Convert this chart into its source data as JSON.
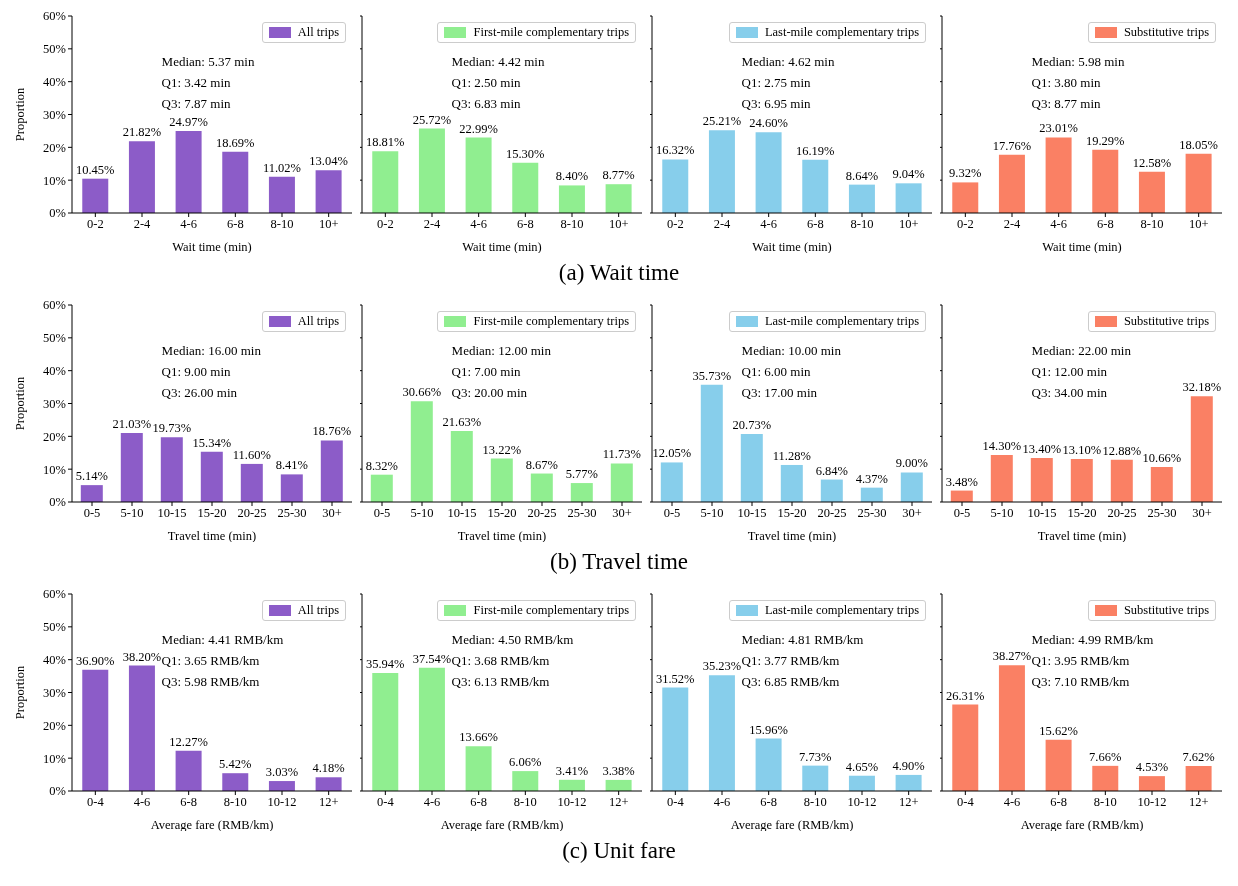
{
  "chart_data": [
    {
      "type": "bar",
      "categories": [
        "0-2",
        "2-4",
        "4-6",
        "6-8",
        "8-10",
        "10+"
      ],
      "xlabel": "Wait time (min)",
      "ylabel": "Proportion",
      "ylim": [
        0,
        60
      ],
      "yticks": [
        {
          "value": 0,
          "label": "0%"
        },
        {
          "value": 10,
          "label": "10%"
        },
        {
          "value": 20,
          "label": "20%"
        },
        {
          "value": 30,
          "label": "30%"
        },
        {
          "value": 40,
          "label": "40%"
        },
        {
          "value": 50,
          "label": "50%"
        },
        {
          "value": 60,
          "label": "60%"
        }
      ],
      "legend": "top right",
      "annotations": [
        "Median: 5.37 min",
        "Q1: 3.42 min",
        "Q3: 7.87 min"
      ],
      "series": [
        {
          "name": "All trips",
          "color": "#8c5cc8",
          "values": [
            10.45,
            21.82,
            24.97,
            18.69,
            11.02,
            13.04
          ],
          "value_labels": [
            "10.45%",
            "21.82%",
            "24.97%",
            "18.69%",
            "11.02%",
            "13.04%"
          ]
        }
      ]
    },
    {
      "type": "bar",
      "title": "(a) Wait time",
      "categories": [
        "0-2",
        "2-4",
        "4-6",
        "6-8",
        "8-10",
        "10+"
      ],
      "xlabel": "Wait time (min)",
      "ylim": [
        0,
        60
      ],
      "yticks": [
        0,
        10,
        20,
        30,
        40,
        50,
        60
      ],
      "tick_labels": "x",
      "legend": "top right",
      "annotations": [
        "Median: 4.42 min",
        "Q1: 2.50 min",
        "Q3: 6.83 min"
      ],
      "series": [
        {
          "name": "First-mile complementary trips",
          "color": "#90ee90",
          "values": [
            18.81,
            25.72,
            22.99,
            15.3,
            8.4,
            8.77
          ],
          "value_labels": [
            "18.81%",
            "25.72%",
            "22.99%",
            "15.30%",
            "8.40%",
            "8.77%"
          ]
        }
      ]
    },
    {
      "type": "bar",
      "categories": [
        "0-2",
        "2-4",
        "4-6",
        "6-8",
        "8-10",
        "10+"
      ],
      "xlabel": "Wait time (min)",
      "ylim": [
        0,
        60
      ],
      "yticks": [
        0,
        10,
        20,
        30,
        40,
        50,
        60
      ],
      "tick_labels": "x",
      "legend": "top right",
      "annotations": [
        "Median: 4.62 min",
        "Q1: 2.75 min",
        "Q3: 6.95 min"
      ],
      "series": [
        {
          "name": "Last-mile complementary trips",
          "color": "#87ceeb",
          "values": [
            16.32,
            25.21,
            24.6,
            16.19,
            8.64,
            9.04
          ],
          "value_labels": [
            "16.32%",
            "25.21%",
            "24.60%",
            "16.19%",
            "8.64%",
            "9.04%"
          ]
        }
      ]
    },
    {
      "type": "bar",
      "categories": [
        "0-2",
        "2-4",
        "4-6",
        "6-8",
        "8-10",
        "10+"
      ],
      "xlabel": "Wait time (min)",
      "ylim": [
        0,
        60
      ],
      "yticks": [
        0,
        10,
        20,
        30,
        40,
        50,
        60
      ],
      "tick_labels": "x",
      "legend": "top right",
      "annotations": [
        "Median: 5.98 min",
        "Q1: 3.80 min",
        "Q3: 8.77 min"
      ],
      "series": [
        {
          "name": "Substitutive trips",
          "color": "#fa8064",
          "values": [
            9.32,
            17.76,
            23.01,
            19.29,
            12.58,
            18.05
          ],
          "value_labels": [
            "9.32%",
            "17.76%",
            "23.01%",
            "19.29%",
            "12.58%",
            "18.05%"
          ]
        }
      ]
    },
    {
      "type": "bar",
      "categories": [
        "0-5",
        "5-10",
        "10-15",
        "15-20",
        "20-25",
        "25-30",
        "30+"
      ],
      "xlabel": "Travel time (min)",
      "ylabel": "Proportion",
      "ylim": [
        0,
        60
      ],
      "yticks": [
        {
          "value": 0,
          "label": "0%"
        },
        {
          "value": 10,
          "label": "10%"
        },
        {
          "value": 20,
          "label": "20%"
        },
        {
          "value": 30,
          "label": "30%"
        },
        {
          "value": 40,
          "label": "40%"
        },
        {
          "value": 50,
          "label": "50%"
        },
        {
          "value": 60,
          "label": "60%"
        }
      ],
      "legend": "top right",
      "annotations": [
        "Median: 16.00 min",
        "Q1: 9.00 min",
        "Q3: 26.00 min"
      ],
      "series": [
        {
          "name": "All trips",
          "color": "#8c5cc8",
          "values": [
            5.14,
            21.03,
            19.73,
            15.34,
            11.6,
            8.41,
            18.76
          ],
          "value_labels": [
            "5.14%",
            "21.03%",
            "19.73%",
            "15.34%",
            "11.60%",
            "8.41%",
            "18.76%"
          ]
        }
      ]
    },
    {
      "type": "bar",
      "title": "(b) Travel time",
      "categories": [
        "0-5",
        "5-10",
        "10-15",
        "15-20",
        "20-25",
        "25-30",
        "30+"
      ],
      "xlabel": "Travel time (min)",
      "ylim": [
        0,
        60
      ],
      "yticks": [
        0,
        10,
        20,
        30,
        40,
        50,
        60
      ],
      "tick_labels": "x",
      "legend": "top right",
      "annotations": [
        "Median: 12.00 min",
        "Q1: 7.00 min",
        "Q3: 20.00 min"
      ],
      "series": [
        {
          "name": "First-mile complementary trips",
          "color": "#90ee90",
          "values": [
            8.32,
            30.66,
            21.63,
            13.22,
            8.67,
            5.77,
            11.73
          ],
          "value_labels": [
            "8.32%",
            "30.66%",
            "21.63%",
            "13.22%",
            "8.67%",
            "5.77%",
            "11.73%"
          ]
        }
      ]
    },
    {
      "type": "bar",
      "categories": [
        "0-5",
        "5-10",
        "10-15",
        "15-20",
        "20-25",
        "25-30",
        "30+"
      ],
      "xlabel": "Travel time (min)",
      "ylim": [
        0,
        60
      ],
      "yticks": [
        0,
        10,
        20,
        30,
        40,
        50,
        60
      ],
      "tick_labels": "x",
      "legend": "top right",
      "annotations": [
        "Median: 10.00 min",
        "Q1: 6.00 min",
        "Q3: 17.00 min"
      ],
      "series": [
        {
          "name": "Last-mile complementary trips",
          "color": "#87ceeb",
          "values": [
            12.05,
            35.73,
            20.73,
            11.28,
            6.84,
            4.37,
            9.0
          ],
          "value_labels": [
            "12.05%",
            "35.73%",
            "20.73%",
            "11.28%",
            "6.84%",
            "4.37%",
            "9.00%"
          ]
        }
      ]
    },
    {
      "type": "bar",
      "categories": [
        "0-5",
        "5-10",
        "10-15",
        "15-20",
        "20-25",
        "25-30",
        "30+"
      ],
      "xlabel": "Travel time (min)",
      "ylim": [
        0,
        60
      ],
      "yticks": [
        0,
        10,
        20,
        30,
        40,
        50,
        60
      ],
      "tick_labels": "x",
      "legend": "top right",
      "annotations": [
        "Median: 22.00 min",
        "Q1: 12.00 min",
        "Q3: 34.00 min"
      ],
      "series": [
        {
          "name": "Substitutive trips",
          "color": "#fa8064",
          "values": [
            3.48,
            14.3,
            13.4,
            13.1,
            12.88,
            10.66,
            32.18
          ],
          "value_labels": [
            "3.48%",
            "14.30%",
            "13.40%",
            "13.10%",
            "12.88%",
            "10.66%",
            "32.18%"
          ]
        }
      ]
    },
    {
      "type": "bar",
      "categories": [
        "0-4",
        "4-6",
        "6-8",
        "8-10",
        "10-12",
        "12+"
      ],
      "xlabel": "Average fare (RMB/km)",
      "ylabel": "Proportion",
      "ylim": [
        0,
        60
      ],
      "yticks": [
        {
          "value": 0,
          "label": "0%"
        },
        {
          "value": 10,
          "label": "10%"
        },
        {
          "value": 20,
          "label": "20%"
        },
        {
          "value": 30,
          "label": "30%"
        },
        {
          "value": 40,
          "label": "40%"
        },
        {
          "value": 50,
          "label": "50%"
        },
        {
          "value": 60,
          "label": "60%"
        }
      ],
      "legend": "top right",
      "annotations": [
        "Median: 4.41 RMB/km",
        "Q1: 3.65 RMB/km",
        "Q3: 5.98 RMB/km"
      ],
      "series": [
        {
          "name": "All trips",
          "color": "#8c5cc8",
          "values": [
            36.9,
            38.2,
            12.27,
            5.42,
            3.03,
            4.18
          ],
          "value_labels": [
            "36.90%",
            "38.20%",
            "12.27%",
            "5.42%",
            "3.03%",
            "4.18%"
          ]
        }
      ]
    },
    {
      "type": "bar",
      "title": "(c) Unit fare",
      "categories": [
        "0-4",
        "4-6",
        "6-8",
        "8-10",
        "10-12",
        "12+"
      ],
      "xlabel": "Average fare (RMB/km)",
      "ylim": [
        0,
        60
      ],
      "yticks": [
        0,
        10,
        20,
        30,
        40,
        50,
        60
      ],
      "tick_labels": "x",
      "legend": "top right",
      "annotations": [
        "Median: 4.50 RMB/km",
        "Q1: 3.68 RMB/km",
        "Q3: 6.13 RMB/km"
      ],
      "series": [
        {
          "name": "First-mile complementary trips",
          "color": "#90ee90",
          "values": [
            35.94,
            37.54,
            13.66,
            6.06,
            3.41,
            3.38
          ],
          "value_labels": [
            "35.94%",
            "37.54%",
            "13.66%",
            "6.06%",
            "3.41%",
            "3.38%"
          ]
        }
      ]
    },
    {
      "type": "bar",
      "categories": [
        "0-4",
        "4-6",
        "6-8",
        "8-10",
        "10-12",
        "12+"
      ],
      "xlabel": "Average fare (RMB/km)",
      "ylim": [
        0,
        60
      ],
      "yticks": [
        0,
        10,
        20,
        30,
        40,
        50,
        60
      ],
      "tick_labels": "x",
      "legend": "top right",
      "annotations": [
        "Median: 4.81 RMB/km",
        "Q1: 3.77 RMB/km",
        "Q3: 6.85 RMB/km"
      ],
      "series": [
        {
          "name": "Last-mile complementary trips",
          "color": "#87ceeb",
          "values": [
            31.52,
            35.23,
            15.96,
            7.73,
            4.65,
            4.9
          ],
          "value_labels": [
            "31.52%",
            "35.23%",
            "15.96%",
            "7.73%",
            "4.65%",
            "4.90%"
          ]
        }
      ]
    },
    {
      "type": "bar",
      "categories": [
        "0-4",
        "4-6",
        "6-8",
        "8-10",
        "10-12",
        "12+"
      ],
      "xlabel": "Average fare (RMB/km)",
      "ylim": [
        0,
        60
      ],
      "yticks": [
        0,
        10,
        20,
        30,
        40,
        50,
        60
      ],
      "tick_labels": "x",
      "legend": "top right",
      "annotations": [
        "Median: 4.99 RMB/km",
        "Q1: 3.95 RMB/km",
        "Q3: 7.10 RMB/km"
      ],
      "series": [
        {
          "name": "Substitutive trips",
          "color": "#fa8064",
          "values": [
            26.31,
            38.27,
            15.62,
            7.66,
            4.53,
            7.62
          ],
          "value_labels": [
            "26.31%",
            "38.27%",
            "15.62%",
            "7.66%",
            "4.53%",
            "7.62%"
          ]
        }
      ]
    }
  ]
}
